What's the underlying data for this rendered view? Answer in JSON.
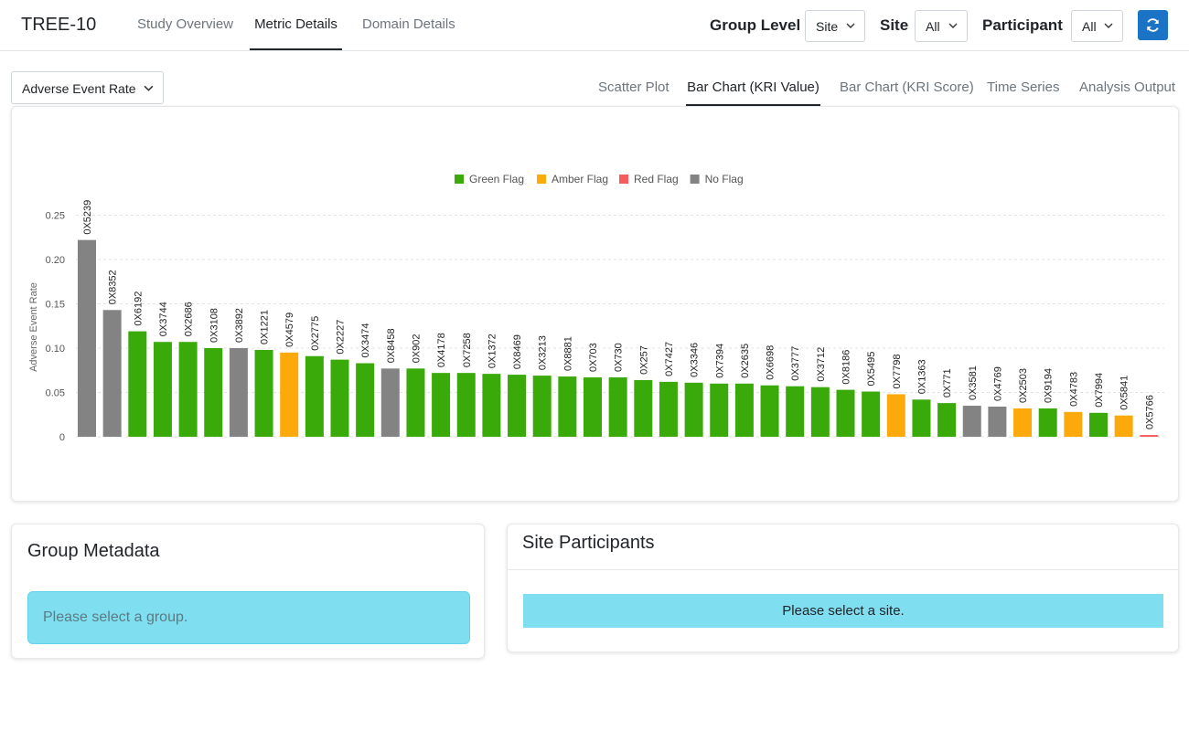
{
  "app": {
    "brand": "TREE-10"
  },
  "nav": {
    "tabs": [
      {
        "label": "Study Overview",
        "active": false
      },
      {
        "label": "Metric Details",
        "active": true
      },
      {
        "label": "Domain Details",
        "active": false
      }
    ],
    "filters": {
      "group_level_label": "Group Level",
      "group_level_value": "Site",
      "site_label": "Site",
      "site_value": "All",
      "participant_label": "Participant",
      "participant_value": "All"
    },
    "refresh_icon": "refresh-icon",
    "accent_color": "#1a73c4"
  },
  "metric_select": {
    "value": "Adverse Event Rate"
  },
  "subtabs": [
    {
      "label": "Scatter Plot",
      "active": false
    },
    {
      "label": "Bar Chart (KRI Value)",
      "active": true
    },
    {
      "label": "Bar Chart (KRI Score)",
      "active": false
    },
    {
      "label": "Time Series",
      "active": false
    },
    {
      "label": "Analysis Output",
      "active": false
    }
  ],
  "chart_data": {
    "type": "bar",
    "ylabel": "Adverse Event Rate",
    "xlabel": "",
    "ylim": [
      0,
      0.27
    ],
    "yticks": [
      "0",
      "0.05",
      "0.10",
      "0.15",
      "0.20",
      "0.25"
    ],
    "ytick_values": [
      0,
      0.05,
      0.1,
      0.15,
      0.2,
      0.25
    ],
    "grid": true,
    "legend_position": "top-center",
    "legend": [
      {
        "name": "Green Flag",
        "color": "#3aaa0a"
      },
      {
        "name": "Amber Flag",
        "color": "#fcaa0b"
      },
      {
        "name": "Red Flag",
        "color": "#f65c5c"
      },
      {
        "name": "No Flag",
        "color": "#838383"
      }
    ],
    "categories": [
      "0X5239",
      "0X8352",
      "0X6192",
      "0X3744",
      "0X2686",
      "0X3108",
      "0X3892",
      "0X1221",
      "0X4579",
      "0X2775",
      "0X2227",
      "0X3474",
      "0X8458",
      "0X902",
      "0X4178",
      "0X7258",
      "0X1372",
      "0X8469",
      "0X3213",
      "0X8881",
      "0X703",
      "0X730",
      "0X257",
      "0X7427",
      "0X3346",
      "0X7394",
      "0X2635",
      "0X6698",
      "0X3777",
      "0X3712",
      "0X8186",
      "0X5495",
      "0X7798",
      "0X1363",
      "0X771",
      "0X3581",
      "0X4769",
      "0X2503",
      "0X9194",
      "0X4783",
      "0X7994",
      "0X5841",
      "0X5766"
    ],
    "values": [
      0.222,
      0.143,
      0.119,
      0.107,
      0.107,
      0.1,
      0.1,
      0.098,
      0.095,
      0.091,
      0.087,
      0.083,
      0.077,
      0.077,
      0.072,
      0.072,
      0.071,
      0.07,
      0.069,
      0.068,
      0.067,
      0.067,
      0.064,
      0.062,
      0.061,
      0.06,
      0.06,
      0.058,
      0.057,
      0.056,
      0.053,
      0.051,
      0.048,
      0.042,
      0.038,
      0.035,
      0.034,
      0.032,
      0.032,
      0.028,
      0.027,
      0.024,
      0.002
    ],
    "flags": [
      "No Flag",
      "No Flag",
      "Green Flag",
      "Green Flag",
      "Green Flag",
      "Green Flag",
      "No Flag",
      "Green Flag",
      "Amber Flag",
      "Green Flag",
      "Green Flag",
      "Green Flag",
      "No Flag",
      "Green Flag",
      "Green Flag",
      "Green Flag",
      "Green Flag",
      "Green Flag",
      "Green Flag",
      "Green Flag",
      "Green Flag",
      "Green Flag",
      "Green Flag",
      "Green Flag",
      "Green Flag",
      "Green Flag",
      "Green Flag",
      "Green Flag",
      "Green Flag",
      "Green Flag",
      "Green Flag",
      "Green Flag",
      "Amber Flag",
      "Green Flag",
      "Green Flag",
      "No Flag",
      "No Flag",
      "Amber Flag",
      "Green Flag",
      "Amber Flag",
      "Green Flag",
      "Amber Flag",
      "Red Flag"
    ]
  },
  "group_metadata": {
    "title": "Group Metadata",
    "message": "Please select a group."
  },
  "site_participants": {
    "title": "Site Participants",
    "message": "Please select a site."
  }
}
